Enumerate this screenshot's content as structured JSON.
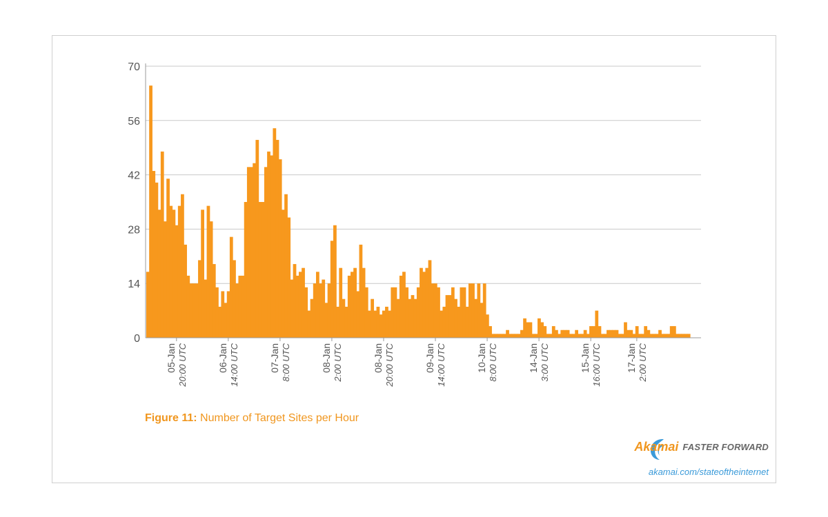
{
  "colors": {
    "bar": "#f7981d",
    "grid": "#c8c8c8",
    "axis": "#999999",
    "caption": "#f0961e",
    "url": "#3a9ad9"
  },
  "caption": {
    "prefix": "Figure 11:",
    "text": "Number of Target Sites per Hour"
  },
  "brand": {
    "logo": "Akamai",
    "tagline": "FASTER FORWARD",
    "url": "akamai.com/stateoftheinternet",
    "icon": "akamai-swoosh-icon"
  },
  "chart_data": {
    "type": "bar",
    "title": "Number of Target Sites per Hour",
    "xlabel": "",
    "ylabel": "",
    "ylim": [
      0,
      70
    ],
    "yticks": [
      0,
      14,
      28,
      42,
      56,
      70
    ],
    "xtick_labels": [
      {
        "index": 10,
        "date": "05-Jan",
        "time": "20:00 UTC"
      },
      {
        "index": 28,
        "date": "06-Jan",
        "time": "14:00 UTC"
      },
      {
        "index": 46,
        "date": "07-Jan",
        "time": "8:00 UTC"
      },
      {
        "index": 64,
        "date": "08-Jan",
        "time": "2:00 UTC"
      },
      {
        "index": 82,
        "date": "08-Jan",
        "time": "20:00 UTC"
      },
      {
        "index": 100,
        "date": "09-Jan",
        "time": "14:00 UTC"
      },
      {
        "index": 118,
        "date": "10-Jan",
        "time": "8:00 UTC"
      },
      {
        "index": 136,
        "date": "14-Jan",
        "time": "3:00 UTC"
      },
      {
        "index": 154,
        "date": "15-Jan",
        "time": "16:00 UTC"
      },
      {
        "index": 170,
        "date": "17-Jan",
        "time": "2:00 UTC"
      }
    ],
    "values": [
      17,
      65,
      43,
      40,
      33,
      48,
      30,
      41,
      34,
      33,
      29,
      34,
      37,
      24,
      16,
      14,
      14,
      14,
      20,
      33,
      15,
      34,
      30,
      19,
      13,
      8,
      12,
      9,
      12,
      26,
      20,
      14,
      16,
      16,
      35,
      44,
      44,
      45,
      51,
      35,
      35,
      44,
      48,
      47,
      54,
      51,
      46,
      33,
      37,
      31,
      15,
      19,
      16,
      17,
      18,
      13,
      7,
      10,
      14,
      17,
      14,
      15,
      9,
      14,
      25,
      29,
      8,
      18,
      10,
      8,
      16,
      17,
      18,
      12,
      24,
      18,
      13,
      7,
      10,
      7,
      8,
      6,
      7,
      8,
      7,
      13,
      13,
      10,
      16,
      17,
      13,
      10,
      11,
      10,
      13,
      18,
      17,
      18,
      20,
      14,
      14,
      13,
      7,
      8,
      11,
      11,
      13,
      10,
      8,
      13,
      13,
      8,
      14,
      14,
      10,
      14,
      9,
      14,
      6,
      3,
      1,
      1,
      1,
      1,
      1,
      2,
      1,
      1,
      1,
      1,
      2,
      5,
      4,
      4,
      1,
      1,
      5,
      4,
      3,
      1,
      1,
      3,
      2,
      1,
      2,
      2,
      2,
      1,
      1,
      2,
      1,
      1,
      2,
      1,
      3,
      3,
      7,
      3,
      1,
      1,
      2,
      2,
      2,
      2,
      1,
      1,
      4,
      2,
      2,
      1,
      3,
      1,
      1,
      3,
      2,
      1,
      1,
      1,
      2,
      1,
      1,
      1,
      3,
      3,
      1,
      1,
      1,
      1,
      1
    ]
  }
}
